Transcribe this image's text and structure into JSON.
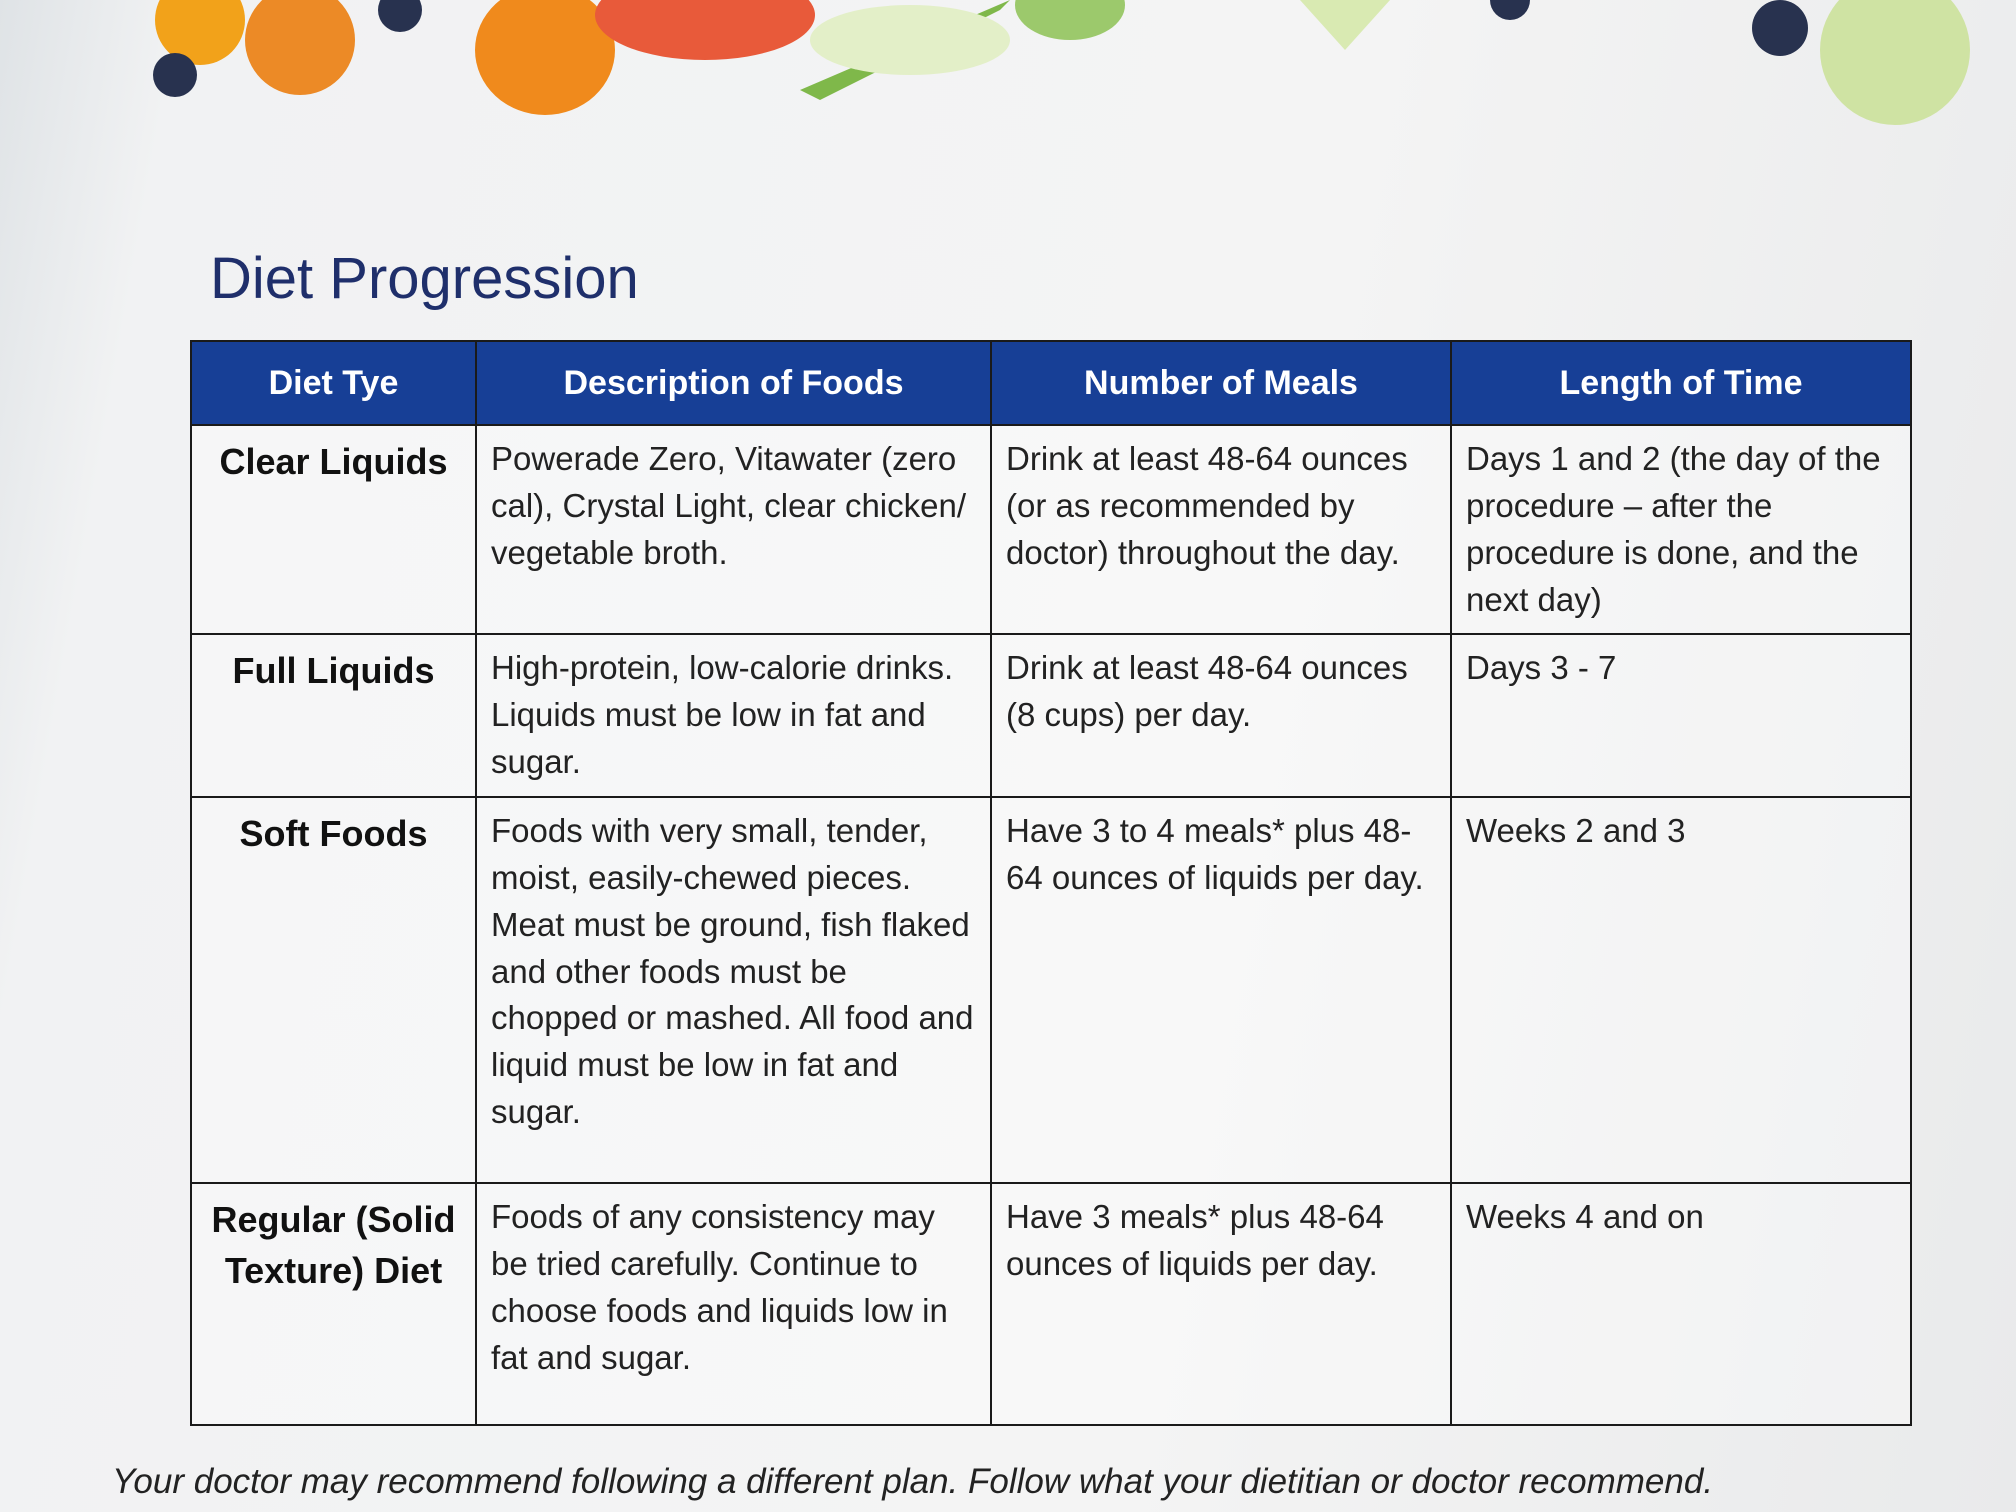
{
  "header": {
    "title": "Diet Progression"
  },
  "table": {
    "headers": [
      "Diet Tye",
      "Description of Foods",
      "Number of Meals",
      "Length of Time"
    ],
    "rows": [
      [
        "Clear Liquids",
        "Powerade Zero, Vitawater (zero cal), Crystal Light, clear chicken/ vegetable broth.",
        "Drink at least 48-64 ounces (or as recommended by doctor) throughout the day.",
        "Days 1 and 2 (the day of the procedure – after the procedure is done, and the next day)"
      ],
      [
        "Full Liquids",
        "High-protein, low-calorie drinks. Liquids must be low in fat and sugar.",
        "Drink at least 48-64 ounces (8 cups) per day.",
        "Days 3 - 7"
      ],
      [
        "Soft Foods",
        "Foods with very small, tender, moist, easily-chewed pieces. Meat must be ground, fish flaked and other foods must be chopped or mashed. All food and liquid must be low in fat and sugar.",
        "Have 3 to 4 meals* plus 48-64 ounces of liquids per day.",
        "Weeks 2 and 3"
      ],
      [
        "Regular (Solid Texture) Diet",
        "Foods of any consistency may be tried carefully. Continue to choose foods and liquids low in fat and sugar.",
        "Have 3 meals* plus 48-64 ounces of liquids per day.",
        "Weeks 4 and on"
      ]
    ]
  },
  "footer": {
    "note": "Your doctor may recommend following a different plan. Follow what your dietitian or doctor recommend."
  }
}
